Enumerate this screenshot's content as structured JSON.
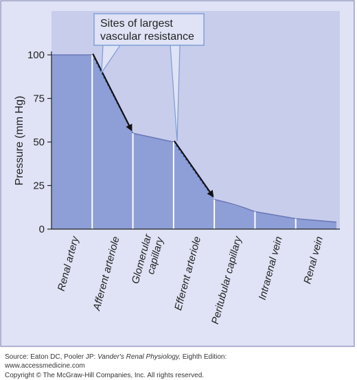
{
  "chart_data": {
    "type": "area",
    "title": "",
    "ylabel": "Pressure (mm Hg)",
    "xlabel": "",
    "ylim": [
      0,
      100
    ],
    "yticks": [
      0,
      25,
      50,
      75,
      100
    ],
    "categories": [
      "Renal artery",
      "Afferent arteriole",
      "Glomerular capillary",
      "Efferent arteriole",
      "Peritubular capillary",
      "Intrarenal vein",
      "Renal vein"
    ],
    "segment_pressures": [
      {
        "segment": "Renal artery",
        "start": 100,
        "end": 100
      },
      {
        "segment": "Afferent arteriole",
        "start": 100,
        "end": 55
      },
      {
        "segment": "Glomerular capillary",
        "start": 55,
        "end": 50
      },
      {
        "segment": "Efferent arteriole",
        "start": 50,
        "end": 17
      },
      {
        "segment": "Peritubular capillary",
        "start": 17,
        "end": 10
      },
      {
        "segment": "Intrarenal vein",
        "start": 10,
        "end": 6
      },
      {
        "segment": "Renal vein",
        "start": 6,
        "end": 4
      }
    ],
    "annotation": {
      "line1": "Sites of largest",
      "line2": "vascular resistance",
      "targets": [
        "Afferent arteriole",
        "Efferent arteriole"
      ]
    },
    "grid": false,
    "colors": {
      "area": "#8e9ed6",
      "plot_bg": "#c8cdeb",
      "frame_bg": "#dfe3f5"
    }
  },
  "source": {
    "label": "Source: Eaton DC, Pooler JP: ",
    "book": "Vander's Renal Physiology,",
    "edition": " Eighth Edition:",
    "url": "www.accessmedicine.com",
    "copyright": "Copyright © The McGraw-Hill Companies, Inc. All rights reserved."
  }
}
